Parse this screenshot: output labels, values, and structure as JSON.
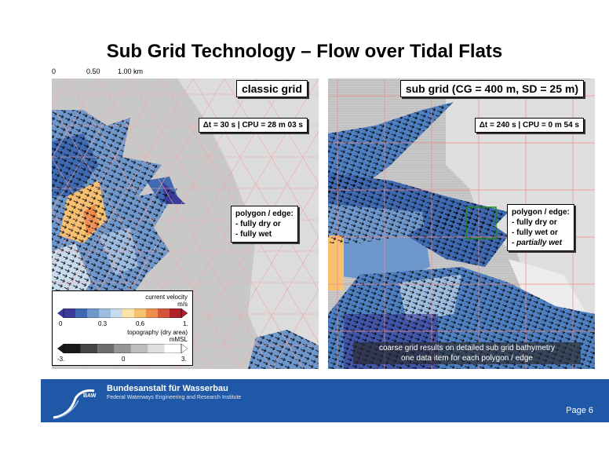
{
  "title": "Sub Grid Technology – Flow over Tidal Flats",
  "scalebar": {
    "labels": [
      "0",
      "0.50",
      "1.00 km"
    ]
  },
  "left_panel": {
    "title": "classic grid",
    "timing": "Δt = 30 s | CPU =  28 m 03 s",
    "polygon_title": "polygon / edge:",
    "polygon_lines": [
      "- fully dry or",
      "- fully wet"
    ]
  },
  "right_panel": {
    "title": "sub grid (CG = 400 m, SD = 25 m)",
    "timing": "Δt = 240 s | CPU =  0 m 54 s",
    "polygon_title": "polygon / edge:",
    "polygon_lines": [
      "- fully dry or",
      "- fully wet or"
    ],
    "polygon_line_italic": "partially wet",
    "note_line1": "coarse grid results on detailed sub grid bathymetry",
    "note_line2": "one data item for each polygon / edge"
  },
  "legend": {
    "velocity_title": "current velocity",
    "velocity_unit": "m/s",
    "velocity_ticks": [
      "0",
      "0.3",
      "0.6",
      "1."
    ],
    "topo_title": "topography (dry area)",
    "topo_unit": "mMSL",
    "topo_ticks": [
      "-3.",
      "0",
      "3."
    ],
    "velocity_colors": [
      "#3b3b9a",
      "#3f69b0",
      "#6e97cc",
      "#9dbde0",
      "#c8dcee",
      "#fbe4a8",
      "#f7c170",
      "#ef8d4f",
      "#d5553a",
      "#b0232c"
    ],
    "topo_colors": [
      "#1a1a1a",
      "#444444",
      "#6e6e6e",
      "#969696",
      "#bdbdbd",
      "#dedede",
      "#ffffff"
    ]
  },
  "footer": {
    "logo_text": "BAW",
    "org": "Bundesanstalt für Wasserbau",
    "sub": "Federal Waterways Engineering and Research Institute",
    "page": "Page 6"
  }
}
